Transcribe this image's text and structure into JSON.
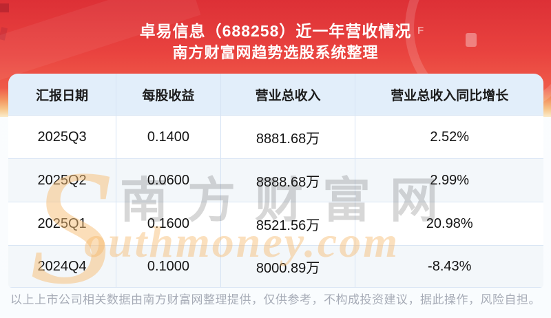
{
  "header": {
    "title": "卓易信息（688258）近一年营收情况",
    "subtitle": "南方财富网趋势选股系统整理"
  },
  "chart_data": {
    "type": "table",
    "title": "卓易信息（688258）近一年营收情况",
    "subtitle": "南方财富网趋势选股系统整理",
    "columns": [
      "汇报日期",
      "每股收益",
      "营业总收入",
      "营业总收入同比增长"
    ],
    "rows": [
      [
        "2025Q3",
        "0.1400",
        "8881.68万",
        "2.52%"
      ],
      [
        "2025Q2",
        "0.0600",
        "8888.68万",
        "2.99%"
      ],
      [
        "2025Q1",
        "0.1600",
        "8521.56万",
        "20.98%"
      ],
      [
        "2024Q4",
        "0.1000",
        "8000.89万",
        "-8.43%"
      ]
    ]
  },
  "watermark": {
    "brand_cn": "南方财富网",
    "brand_latin_initial": "S",
    "brand_latin_rest": "outhmoney.com"
  },
  "footer": {
    "disclaimer": "以上上市公司相关数据由南方财富网整理提供，仅供参考，不构成投资建议，据此操作，风险自担。"
  },
  "colors": {
    "header_red_top": "#dd3036",
    "header_red_mid": "#ef5a49",
    "header_cream_bottom": "#fbeccb",
    "table_header_bg": "#e2eefa",
    "row_alt_bg": "#f3f7fa",
    "divider": "#d9e5f4",
    "footer_text": "#a7acb7",
    "watermark_orange": "#f6b464"
  }
}
